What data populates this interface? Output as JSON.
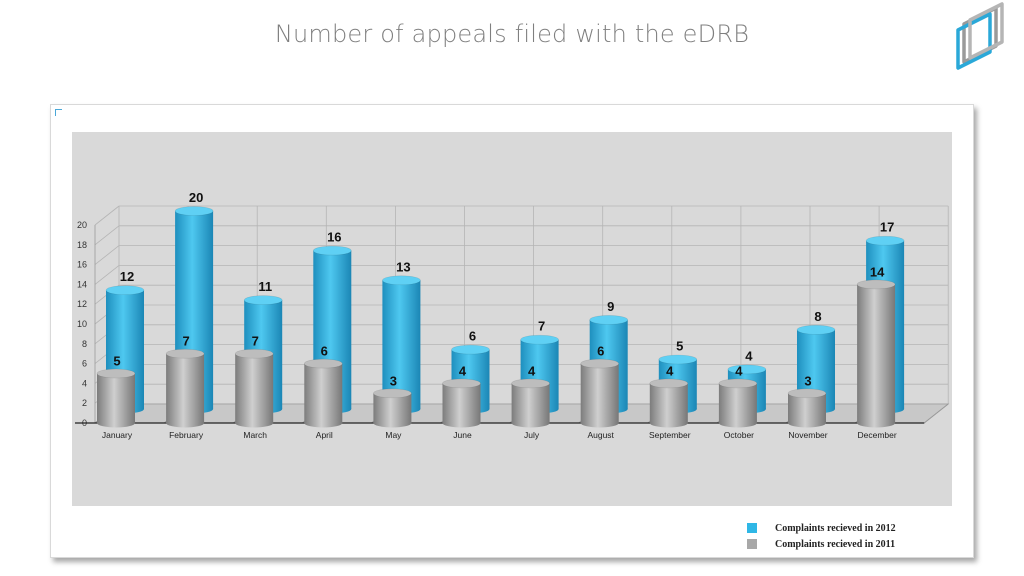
{
  "slide": {
    "title": "Number of appeals filed with the eDRB"
  },
  "colors": {
    "series_2012": "#2fb7e6",
    "series_2011": "#a8a8a8",
    "plot_bg": "#d9d9d9"
  },
  "icons": {
    "logo": "stacked-frames-logo-icon"
  },
  "chart_data": {
    "type": "bar",
    "style": "3d-cylinder",
    "title": "",
    "xlabel": "",
    "ylabel": "",
    "ylim": [
      0,
      20
    ],
    "yticks": [
      "0",
      "2",
      "4",
      "6",
      "8",
      "10",
      "12",
      "14",
      "16",
      "18",
      "20"
    ],
    "grid": true,
    "legend_position": "bottom-right",
    "categories": [
      "January",
      "February",
      "March",
      "April",
      "May",
      "June",
      "July",
      "August",
      "September",
      "October",
      "November",
      "December"
    ],
    "series": [
      {
        "name": "Complaints recieved in 2012",
        "color": "#2fb7e6",
        "values": [
          12,
          20,
          11,
          16,
          13,
          6,
          7,
          9,
          5,
          4,
          8,
          17
        ]
      },
      {
        "name": "Complaints recieved in 2011",
        "color": "#a8a8a8",
        "values": [
          5,
          7,
          7,
          6,
          3,
          4,
          4,
          6,
          4,
          4,
          3,
          14
        ]
      }
    ]
  }
}
